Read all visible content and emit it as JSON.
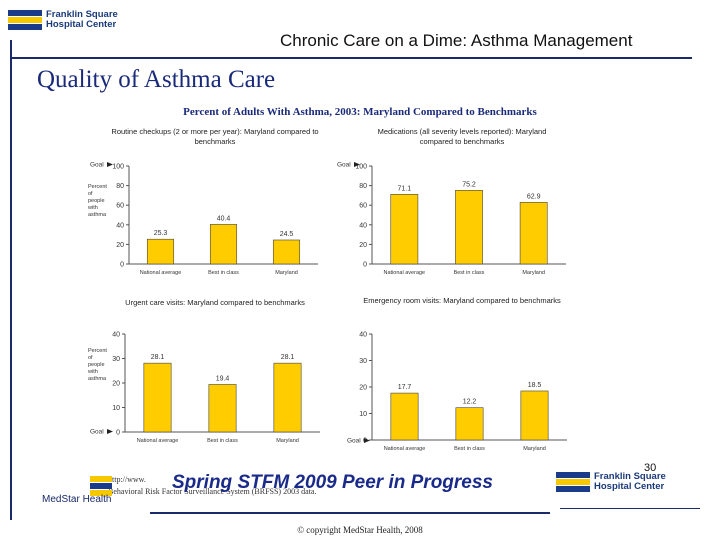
{
  "logo": {
    "line1": "Franklin Square",
    "line2": "Hospital Center"
  },
  "medstar": {
    "name": "MedStar Health"
  },
  "header": {
    "title": "Chronic Care on a Dime: Asthma Management"
  },
  "slide": {
    "title": "Quality of Asthma Care",
    "subtitle": "Percent of Adults With Asthma, 2003: Maryland Compared to Benchmarks",
    "number": "30"
  },
  "banner": "Spring STFM 2009 Peer in Progress",
  "source": {
    "line1": "http://www.",
    "line2": "Behavioral Risk Factor Surveillance System (BRFSS) 2003 data."
  },
  "footer": "© copyright MedStar Health, 2008",
  "colors": {
    "bar": "#ffcc00",
    "bar_stroke": "#444444",
    "title": "#1a2a7a",
    "accent": "#f5c800"
  },
  "chart_data": [
    {
      "type": "bar",
      "title": "Routine checkups (2 or more per year): Maryland compared to benchmarks",
      "ylabel": "Percent of people with asthma",
      "categories": [
        "National average",
        "Best in class",
        "Maryland"
      ],
      "values": [
        25.3,
        40.4,
        24.5
      ],
      "ylim": [
        0,
        100
      ],
      "yticks": [
        0,
        20,
        40,
        60,
        80,
        100
      ],
      "goal_label": "Goal"
    },
    {
      "type": "bar",
      "title": "Medications (all severity levels reported): Maryland compared to benchmarks",
      "ylabel": "",
      "categories": [
        "National average",
        "Best in class",
        "Maryland"
      ],
      "values": [
        71.1,
        75.2,
        62.9
      ],
      "ylim": [
        0,
        100
      ],
      "yticks": [
        0,
        20,
        40,
        60,
        80,
        100
      ],
      "goal_label": "Goal"
    },
    {
      "type": "bar",
      "title": "Urgent care visits: Maryland compared to benchmarks",
      "ylabel": "Percent of people with asthma",
      "categories": [
        "National average",
        "Best in class",
        "Maryland"
      ],
      "values": [
        28.1,
        19.4,
        28.1
      ],
      "ylim": [
        0,
        40
      ],
      "yticks": [
        0,
        10,
        20,
        30,
        40
      ],
      "goal_label": "Goal"
    },
    {
      "type": "bar",
      "title": "Emergency room visits: Maryland compared to benchmarks",
      "ylabel": "",
      "categories": [
        "National average",
        "Best in class",
        "Maryland"
      ],
      "values": [
        17.7,
        12.2,
        18.5
      ],
      "ylim": [
        0,
        40
      ],
      "yticks": [
        0,
        10,
        20,
        30,
        40
      ],
      "goal_label": "Goal"
    }
  ]
}
